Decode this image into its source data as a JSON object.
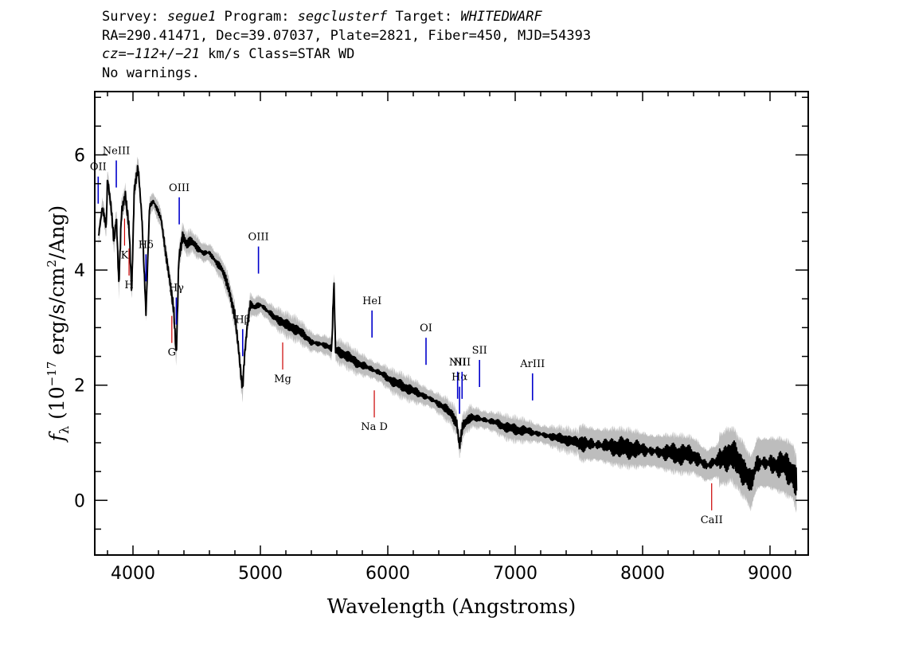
{
  "header": {
    "survey_label": "Survey: ",
    "survey": "segue1",
    "program_label": " Program: ",
    "program": "segclusterf",
    "target_label": " Target: ",
    "target": "WHITEDWARF",
    "coords": "RA=290.41471, Dec=39.07037, Plate=2821, Fiber=450, MJD=54393",
    "cz_label": "cz=",
    "cz_value": "−112+/−21",
    "cz_rest": " km/s Class=STAR WD",
    "warnings": "No warnings."
  },
  "colors": {
    "spectrum": "#000000",
    "error_band": "#bdbdbd",
    "emission_line": "#0000cc",
    "absorption_line": "#cc0000"
  },
  "chart_data": {
    "type": "line",
    "xlabel": "Wavelength (Angstroms)",
    "ylabel_parts": [
      "f",
      "λ",
      " (10",
      "−17",
      " erg/s/cm",
      "2",
      "/Ang)"
    ],
    "xlim": [
      3700,
      9300
    ],
    "ylim": [
      -0.95,
      7.1
    ],
    "x_ticks": [
      4000,
      5000,
      6000,
      7000,
      8000,
      9000
    ],
    "y_ticks": [
      0,
      2,
      4,
      6
    ],
    "x_tick_labels": [
      "4000",
      "5000",
      "6000",
      "7000",
      "8000",
      "9000"
    ],
    "y_tick_labels": [
      "0",
      "2",
      "4",
      "6"
    ],
    "series": [
      {
        "x": [
          3730,
          3760,
          3790,
          3800,
          3830,
          3850,
          3870,
          3889,
          3910,
          3940,
          3970,
          3990,
          4010,
          4040,
          4070,
          4102,
          4130,
          4160,
          4190,
          4220,
          4250,
          4290,
          4320,
          4340,
          4360,
          4390,
          4420,
          4460,
          4500,
          4550,
          4600,
          4650,
          4700,
          4750,
          4800,
          4830,
          4850,
          4861,
          4875,
          4900,
          4920,
          4950,
          5000,
          5100,
          5200,
          5300,
          5400,
          5500,
          5560,
          5577,
          5590,
          5650,
          5750,
          5850,
          5950,
          6050,
          6150,
          6250,
          6350,
          6450,
          6500,
          6540,
          6563,
          6590,
          6650,
          6750,
          6850,
          6950,
          7100,
          7300,
          7500,
          7700,
          7900,
          8100,
          8300,
          8400,
          8500,
          8600,
          8700,
          8800,
          8850,
          8900,
          9000,
          9100,
          9180,
          9210
        ],
        "y": [
          4.6,
          5.1,
          4.75,
          5.6,
          5.05,
          4.5,
          4.9,
          3.75,
          5.0,
          5.3,
          4.7,
          3.6,
          5.4,
          5.8,
          4.9,
          3.25,
          5.1,
          5.2,
          5.05,
          4.9,
          4.4,
          3.8,
          3.3,
          2.5,
          4.2,
          4.6,
          4.45,
          4.5,
          4.4,
          4.3,
          4.3,
          4.15,
          4.0,
          3.7,
          3.2,
          2.6,
          2.1,
          1.95,
          2.5,
          3.1,
          3.4,
          3.35,
          3.4,
          3.2,
          3.05,
          2.95,
          2.75,
          2.7,
          2.65,
          3.8,
          2.6,
          2.55,
          2.4,
          2.3,
          2.2,
          2.05,
          1.95,
          1.85,
          1.75,
          1.6,
          1.5,
          1.35,
          0.95,
          1.3,
          1.45,
          1.4,
          1.35,
          1.25,
          1.2,
          1.1,
          1.0,
          0.95,
          0.9,
          0.85,
          0.8,
          0.78,
          0.6,
          0.7,
          0.8,
          0.5,
          0.3,
          0.65,
          0.65,
          0.6,
          0.5,
          0.25
        ]
      }
    ],
    "lines": [
      {
        "label": "OII",
        "wave": 3727,
        "type": "emission"
      },
      {
        "label": "NeIII",
        "wave": 3869,
        "type": "emission"
      },
      {
        "label": "Hδ",
        "wave": 4102,
        "type": "emission"
      },
      {
        "label": "Hγ",
        "wave": 4340,
        "type": "emission"
      },
      {
        "label": "OIII",
        "wave": 4363,
        "type": "emission"
      },
      {
        "label": "Hβ",
        "wave": 4861,
        "type": "emission"
      },
      {
        "label": "OIII",
        "wave": 4985,
        "type": "emission"
      },
      {
        "label": "HeI",
        "wave": 5876,
        "type": "emission"
      },
      {
        "label": "OI",
        "wave": 6300,
        "type": "emission"
      },
      {
        "label": "NII",
        "wave": 6548,
        "type": "emission"
      },
      {
        "label": "Hα",
        "wave": 6563,
        "type": "emission"
      },
      {
        "label": "NII",
        "wave": 6583,
        "type": "emission"
      },
      {
        "label": "SII",
        "wave": 6720,
        "type": "emission"
      },
      {
        "label": "ArIII",
        "wave": 7136,
        "type": "emission"
      },
      {
        "label": "K",
        "wave": 3934,
        "type": "absorption"
      },
      {
        "label": "H",
        "wave": 3969,
        "type": "absorption"
      },
      {
        "label": "G",
        "wave": 4305,
        "type": "absorption"
      },
      {
        "label": "Mg",
        "wave": 5175,
        "type": "absorption"
      },
      {
        "label": "Na D",
        "wave": 5894,
        "type": "absorption"
      },
      {
        "label": "CaII",
        "wave": 8542,
        "type": "absorption"
      }
    ]
  }
}
